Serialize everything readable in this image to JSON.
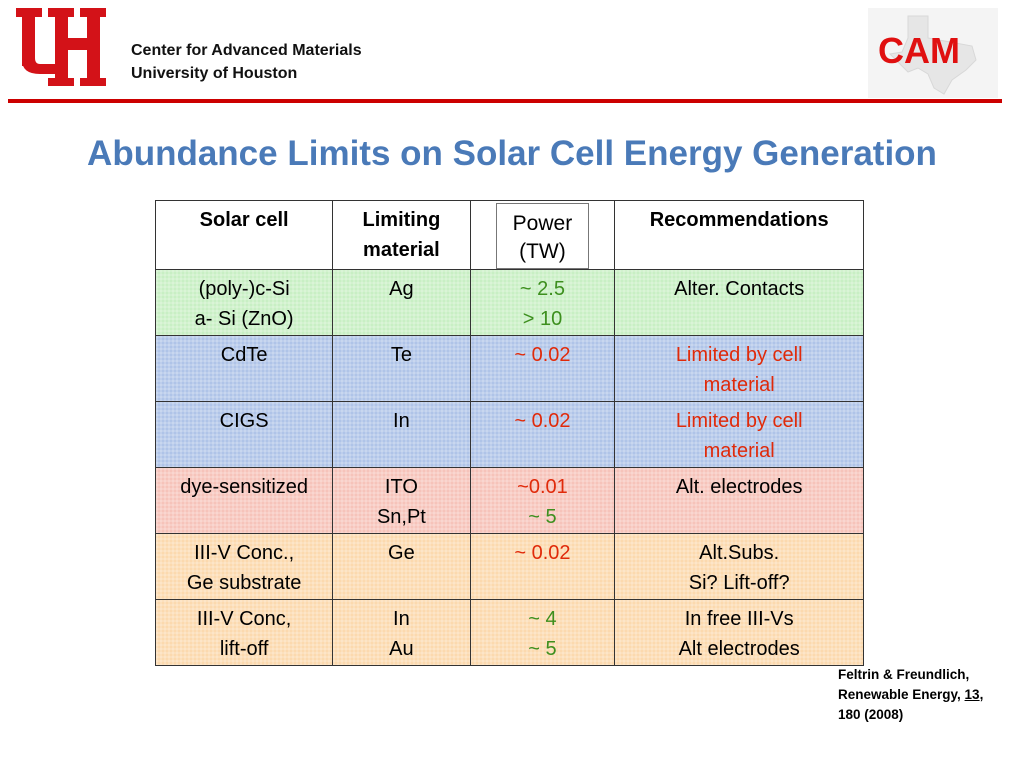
{
  "header": {
    "org_line1": "Center for Advanced Materials",
    "org_line2": "University of Houston",
    "logo_uh": "UH",
    "logo_cam": "CAM"
  },
  "title": "Abundance Limits on Solar Cell Energy Generation",
  "table": {
    "headers": {
      "col1": "Solar cell",
      "col2_line1": "Limiting",
      "col2_line2": "material",
      "col3_line1": "Power",
      "col3_line2": "(TW)",
      "col4": "Recommendations"
    },
    "rows": [
      {
        "color": "green",
        "cell": [
          "(poly-)c-Si",
          "a- Si  (ZnO)"
        ],
        "material": [
          "Ag"
        ],
        "power": [
          "~ 2.5",
          "> 10"
        ],
        "power_color": "green",
        "recommend": [
          "Alter. Contacts"
        ],
        "recommend_color": "black"
      },
      {
        "color": "blue",
        "cell": [
          "CdTe"
        ],
        "material": [
          "Te"
        ],
        "power": [
          "~ 0.02"
        ],
        "power_color": "red",
        "recommend": [
          "Limited by cell",
          "material"
        ],
        "recommend_color": "red"
      },
      {
        "color": "blue",
        "cell": [
          "CIGS"
        ],
        "material": [
          "In"
        ],
        "power": [
          "~ 0.02"
        ],
        "power_color": "red",
        "recommend": [
          "Limited by cell",
          "material"
        ],
        "recommend_color": "red"
      },
      {
        "color": "red",
        "cell": [
          "dye-sensitized"
        ],
        "material": [
          "ITO",
          "Sn,Pt"
        ],
        "power": [
          "~0.01",
          "~ 5"
        ],
        "power_color": "mixed",
        "recommend": [
          "Alt. electrodes"
        ],
        "recommend_color": "black"
      },
      {
        "color": "orange",
        "cell": [
          "III-V Conc.,",
          "Ge substrate"
        ],
        "material": [
          "Ge"
        ],
        "power": [
          "~ 0.02"
        ],
        "power_color": "red",
        "recommend": [
          "Alt.Subs.",
          "Si? Lift-off?"
        ],
        "recommend_color": "black"
      },
      {
        "color": "orange",
        "cell": [
          "III-V Conc,",
          "lift-off"
        ],
        "material": [
          "In",
          "Au"
        ],
        "power": [
          "~ 4",
          "~ 5"
        ],
        "power_color": "green",
        "recommend": [
          "In free III-Vs",
          "Alt electrodes"
        ],
        "recommend_color": "black"
      }
    ]
  },
  "citation": {
    "line1": "Feltrin & Freundlich,",
    "line2_prefix": "Renewable Energy, ",
    "volume": "13",
    "line2_suffix": ",",
    "line3": "180 (2008)"
  },
  "colors": {
    "accent_red": "#cc0000",
    "title_blue": "#4a7ab8",
    "value_green": "#3d8f1e",
    "value_red": "#e02a0a"
  }
}
